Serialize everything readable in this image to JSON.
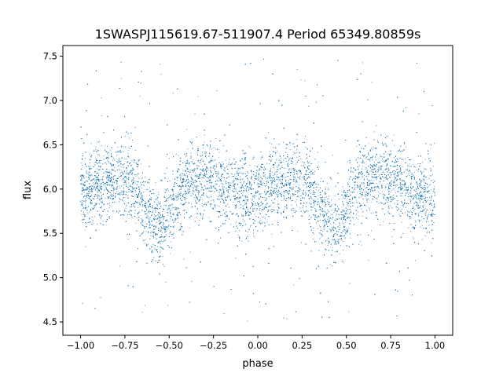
{
  "chart_data": {
    "type": "scatter",
    "title": "1SWASPJ115619.67-511907.4 Period 65349.80859s",
    "xlabel": "phase",
    "ylabel": "flux",
    "xlim": [
      -1.1,
      1.1
    ],
    "ylim": [
      4.35,
      7.62
    ],
    "xticks": [
      -1.0,
      -0.75,
      -0.5,
      -0.25,
      0.0,
      0.25,
      0.5,
      0.75,
      1.0
    ],
    "xtick_labels": [
      "−1.00",
      "−0.75",
      "−0.50",
      "−0.25",
      "0.00",
      "0.25",
      "0.50",
      "0.75",
      "1.00"
    ],
    "yticks": [
      4.5,
      5.0,
      5.5,
      6.0,
      6.5,
      7.0,
      7.5
    ],
    "ytick_labels": [
      "4.5",
      "5.0",
      "5.5",
      "6.0",
      "6.5",
      "7.0",
      "7.5"
    ],
    "grid": false,
    "marker_color": "#1f77b4",
    "series": [
      {
        "phase_range": [
          -1.0,
          1.0
        ],
        "curve_phase": [
          -1.0,
          -0.9,
          -0.8,
          -0.7,
          -0.65,
          -0.6,
          -0.55,
          -0.5,
          -0.45,
          -0.4,
          -0.3,
          -0.2,
          -0.1,
          0.0,
          0.1,
          0.2,
          0.3,
          0.35,
          0.4,
          0.45,
          0.5,
          0.55,
          0.6,
          0.7,
          0.8,
          0.9,
          1.0
        ],
        "curve_flux": [
          5.95,
          6.05,
          6.15,
          6.05,
          5.85,
          5.65,
          5.55,
          5.7,
          5.95,
          6.08,
          6.12,
          6.02,
          5.95,
          5.92,
          6.05,
          6.12,
          6.05,
          5.85,
          5.65,
          5.55,
          5.72,
          5.95,
          6.08,
          6.15,
          6.05,
          5.92,
          5.9
        ],
        "scatter_sigma": 0.22,
        "n_points": 16000,
        "outlier_range": [
          4.5,
          7.5
        ]
      }
    ]
  }
}
